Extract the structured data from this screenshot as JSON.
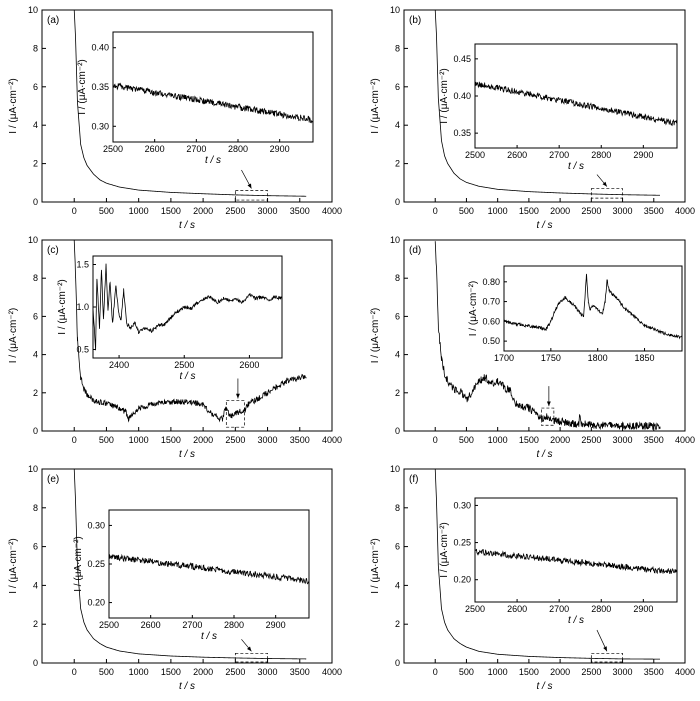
{
  "chart_data": [
    {
      "type": "line",
      "panel_label": "(a)",
      "xlabel": "t / s",
      "ylabel": "I / (μA·cm⁻²)",
      "xlim": [
        -500,
        4000
      ],
      "ylim": [
        0,
        10
      ],
      "xticks": [
        0,
        500,
        1000,
        1500,
        2000,
        2500,
        3000,
        3500,
        4000
      ],
      "yticks": [
        0,
        2,
        4,
        6,
        8,
        10
      ],
      "series": [
        {
          "x": [
            0,
            20,
            50,
            100,
            150,
            200,
            300,
            400,
            500,
            700,
            1000,
            1500,
            2000,
            2500,
            3000,
            3600
          ],
          "y": [
            10,
            8.6,
            5.2,
            3.0,
            2.3,
            1.9,
            1.45,
            1.15,
            0.98,
            0.78,
            0.62,
            0.5,
            0.43,
            0.37,
            0.33,
            0.3
          ]
        }
      ],
      "zoom_box": {
        "x": [
          2500,
          3000
        ],
        "y": [
          0.1,
          0.6
        ]
      },
      "inset": {
        "xlabel": "t / s",
        "ylabel": "I / (μA·cm⁻²)",
        "xlim": [
          2500,
          2980
        ],
        "ylim": [
          0.28,
          0.42
        ],
        "xticks": [
          2500,
          2600,
          2700,
          2800,
          2900
        ],
        "yticks": [
          0.3,
          0.35,
          0.4
        ],
        "series": [
          {
            "x": [
              2500,
              2980
            ],
            "y": [
              0.352,
              0.308
            ],
            "noise": 0.004
          }
        ]
      }
    },
    {
      "type": "line",
      "panel_label": "(b)",
      "xlabel": "t / s",
      "ylabel": "I / (μA·cm⁻²)",
      "xlim": [
        -500,
        4000
      ],
      "ylim": [
        0,
        10
      ],
      "xticks": [
        0,
        500,
        1000,
        1500,
        2000,
        2500,
        3000,
        3500,
        4000
      ],
      "yticks": [
        0,
        2,
        4,
        6,
        8,
        10
      ],
      "series": [
        {
          "x": [
            0,
            20,
            50,
            100,
            150,
            200,
            300,
            400,
            500,
            700,
            1000,
            1500,
            2000,
            2500,
            3000,
            3600
          ],
          "y": [
            10,
            8.7,
            5.4,
            3.2,
            2.4,
            2.0,
            1.5,
            1.2,
            1.02,
            0.82,
            0.66,
            0.54,
            0.47,
            0.42,
            0.38,
            0.35
          ]
        }
      ],
      "zoom_box": {
        "x": [
          2500,
          3000
        ],
        "y": [
          0.2,
          0.7
        ]
      },
      "inset": {
        "xlabel": "t / s",
        "ylabel": "I / (μA·cm⁻²)",
        "xlim": [
          2500,
          2980
        ],
        "ylim": [
          0.33,
          0.47
        ],
        "xticks": [
          2500,
          2600,
          2700,
          2800,
          2900
        ],
        "yticks": [
          0.35,
          0.4,
          0.45
        ],
        "series": [
          {
            "x": [
              2500,
              2980
            ],
            "y": [
              0.417,
              0.363
            ],
            "noise": 0.004
          }
        ]
      }
    },
    {
      "type": "line",
      "panel_label": "(c)",
      "xlabel": "t / s",
      "ylabel": "I / (μA·cm⁻²)",
      "xlim": [
        -500,
        4000
      ],
      "ylim": [
        0,
        10
      ],
      "xticks": [
        0,
        500,
        1000,
        1500,
        2000,
        2500,
        3000,
        3500,
        4000
      ],
      "yticks": [
        0,
        2,
        4,
        6,
        8,
        10
      ],
      "series": [
        {
          "x": [
            0,
            20,
            50,
            100,
            150,
            200,
            300,
            400,
            500,
            600,
            700,
            800,
            850,
            900,
            1000,
            1200,
            1400,
            1600,
            1800,
            2000,
            2100,
            2200,
            2300,
            2350,
            2400,
            2450,
            2500,
            2550,
            2600,
            2650,
            2700,
            2800,
            2900,
            3000,
            3100,
            3200,
            3300,
            3400,
            3500,
            3600
          ],
          "y": [
            10,
            8.2,
            4.8,
            2.8,
            2.2,
            1.9,
            1.6,
            1.5,
            1.45,
            1.3,
            1.2,
            1.0,
            0.6,
            0.9,
            1.2,
            1.4,
            1.5,
            1.55,
            1.5,
            1.4,
            1.0,
            0.75,
            0.6,
            1.2,
            0.9,
            0.8,
            0.95,
            1.0,
            1.05,
            1.1,
            1.4,
            1.6,
            1.8,
            2.0,
            2.2,
            2.4,
            2.6,
            2.7,
            2.8,
            2.9
          ],
          "noise": 0.15
        }
      ],
      "zoom_box": {
        "x": [
          2360,
          2640
        ],
        "y": [
          0.2,
          1.6
        ]
      },
      "arrow_x": 2540,
      "inset": {
        "xlabel": "t / s",
        "ylabel": "I / (μA·cm⁻²)",
        "xlim": [
          2360,
          2650
        ],
        "ylim": [
          0.4,
          1.6
        ],
        "xticks": [
          2400,
          2500,
          2600
        ],
        "yticks": [
          0.5,
          1.0,
          1.5
        ],
        "series": [
          {
            "x": [
              2360,
              2364,
              2366,
              2370,
              2373,
              2376,
              2380,
              2383,
              2386,
              2390,
              2395,
              2400,
              2403,
              2407,
              2412,
              2418,
              2424,
              2430,
              2440,
              2450,
              2460,
              2470,
              2480,
              2490,
              2500,
              2510,
              2520,
              2530,
              2540,
              2550,
              2560,
              2570,
              2580,
              2590,
              2600,
              2610,
              2620,
              2630,
              2640,
              2650
            ],
            "y": [
              1.0,
              0.5,
              1.35,
              0.75,
              1.45,
              0.85,
              1.5,
              0.95,
              1.3,
              0.8,
              1.25,
              0.9,
              0.85,
              1.2,
              0.8,
              0.75,
              0.82,
              0.7,
              0.75,
              0.72,
              0.78,
              0.8,
              0.88,
              0.95,
              1.0,
              0.98,
              1.05,
              1.1,
              1.12,
              1.05,
              1.1,
              1.08,
              1.1,
              1.05,
              1.15,
              1.1,
              1.12,
              1.08,
              1.12,
              1.1
            ],
            "noise": 0.02
          }
        ]
      }
    },
    {
      "type": "line",
      "panel_label": "(d)",
      "xlabel": "t / s",
      "ylabel": "I / (μA·cm⁻²)",
      "xlim": [
        -500,
        4000
      ],
      "ylim": [
        0,
        10
      ],
      "xticks": [
        0,
        500,
        1000,
        1500,
        2000,
        2500,
        3000,
        3500,
        4000
      ],
      "yticks": [
        0,
        2,
        4,
        6,
        8,
        10
      ],
      "series": [
        {
          "x": [
            0,
            20,
            50,
            100,
            150,
            200,
            250,
            300,
            400,
            500,
            600,
            700,
            800,
            900,
            1000,
            1100,
            1200,
            1300,
            1400,
            1500,
            1600,
            1700,
            1750,
            1800,
            1850,
            1900,
            2000,
            2100,
            2200,
            2300,
            2320,
            2340,
            2400,
            2600,
            3000,
            3600
          ],
          "y": [
            10,
            8.5,
            5.5,
            3.8,
            3.0,
            2.6,
            2.4,
            2.2,
            2.1,
            1.6,
            2.1,
            2.6,
            2.8,
            2.5,
            2.6,
            2.3,
            2.1,
            1.4,
            1.3,
            1.2,
            0.9,
            0.6,
            0.7,
            0.75,
            0.7,
            0.55,
            0.5,
            0.45,
            0.4,
            0.38,
            1.0,
            0.4,
            0.35,
            0.3,
            0.28,
            0.25
          ],
          "noise": 0.2
        }
      ],
      "zoom_box": {
        "x": [
          1700,
          1900
        ],
        "y": [
          0.3,
          1.2
        ]
      },
      "arrow_x": 1820,
      "inset": {
        "xlabel": "",
        "ylabel": "I / (μA·cm⁻²)",
        "xlim": [
          1700,
          1890
        ],
        "ylim": [
          0.45,
          0.88
        ],
        "xticks": [
          1700,
          1750,
          1800,
          1850
        ],
        "yticks": [
          0.5,
          0.6,
          0.7,
          0.8
        ],
        "series": [
          {
            "x": [
              1700,
              1710,
              1720,
              1730,
              1740,
              1745,
              1750,
              1755,
              1760,
              1765,
              1770,
              1775,
              1780,
              1785,
              1788,
              1790,
              1792,
              1795,
              1800,
              1805,
              1808,
              1810,
              1812,
              1815,
              1820,
              1830,
              1840,
              1850,
              1860,
              1870,
              1880,
              1890
            ],
            "y": [
              0.6,
              0.59,
              0.58,
              0.575,
              0.565,
              0.56,
              0.6,
              0.66,
              0.7,
              0.72,
              0.7,
              0.68,
              0.65,
              0.62,
              0.84,
              0.7,
              0.66,
              0.68,
              0.66,
              0.64,
              0.7,
              0.81,
              0.76,
              0.74,
              0.72,
              0.66,
              0.62,
              0.58,
              0.56,
              0.54,
              0.53,
              0.52
            ],
            "noise": 0.008
          }
        ]
      }
    },
    {
      "type": "line",
      "panel_label": "(e)",
      "xlabel": "t / s",
      "ylabel": "I / (μA·cm⁻²)",
      "xlim": [
        -500,
        4000
      ],
      "ylim": [
        0,
        10
      ],
      "xticks": [
        0,
        500,
        1000,
        1500,
        2000,
        2500,
        3000,
        3500,
        4000
      ],
      "yticks": [
        0,
        2,
        4,
        6,
        8,
        10
      ],
      "series": [
        {
          "x": [
            0,
            20,
            50,
            100,
            150,
            200,
            300,
            400,
            500,
            700,
            1000,
            1500,
            2000,
            2500,
            3000,
            3600
          ],
          "y": [
            10,
            8.4,
            5.0,
            2.8,
            2.1,
            1.7,
            1.25,
            1.0,
            0.82,
            0.62,
            0.47,
            0.36,
            0.3,
            0.26,
            0.23,
            0.21
          ]
        }
      ],
      "zoom_box": {
        "x": [
          2500,
          3000
        ],
        "y": [
          0.05,
          0.5
        ]
      },
      "inset": {
        "xlabel": "t / s",
        "ylabel": "I / (μA·cm⁻²)",
        "xlim": [
          2500,
          2980
        ],
        "ylim": [
          0.18,
          0.32
        ],
        "xticks": [
          2500,
          2600,
          2700,
          2800,
          2900
        ],
        "yticks": [
          0.2,
          0.25,
          0.3
        ],
        "series": [
          {
            "x": [
              2500,
              2980
            ],
            "y": [
              0.26,
              0.228
            ],
            "noise": 0.004
          }
        ]
      }
    },
    {
      "type": "line",
      "panel_label": "(f)",
      "xlabel": "t / s",
      "ylabel": "I / (μA·cm⁻²)",
      "xlim": [
        -500,
        4000
      ],
      "ylim": [
        0,
        10
      ],
      "xticks": [
        0,
        500,
        1000,
        1500,
        2000,
        2500,
        3000,
        3500,
        4000
      ],
      "yticks": [
        0,
        2,
        4,
        6,
        8,
        10
      ],
      "series": [
        {
          "x": [
            0,
            20,
            50,
            100,
            150,
            200,
            300,
            400,
            500,
            700,
            1000,
            1500,
            2000,
            2500,
            3000,
            3600
          ],
          "y": [
            10,
            8.4,
            5.0,
            2.8,
            2.1,
            1.7,
            1.25,
            1.0,
            0.82,
            0.6,
            0.45,
            0.34,
            0.28,
            0.24,
            0.21,
            0.2
          ]
        }
      ],
      "zoom_box": {
        "x": [
          2500,
          3000
        ],
        "y": [
          0.05,
          0.5
        ]
      },
      "inset": {
        "xlabel": "t / s",
        "ylabel": "I / (μA·cm⁻²)",
        "xlim": [
          2500,
          2980
        ],
        "ylim": [
          0.17,
          0.31
        ],
        "xticks": [
          2500,
          2600,
          2700,
          2800,
          2900
        ],
        "yticks": [
          0.2,
          0.25,
          0.3
        ],
        "series": [
          {
            "x": [
              2500,
              2980
            ],
            "y": [
              0.238,
              0.21
            ],
            "noise": 0.004
          }
        ]
      }
    }
  ]
}
